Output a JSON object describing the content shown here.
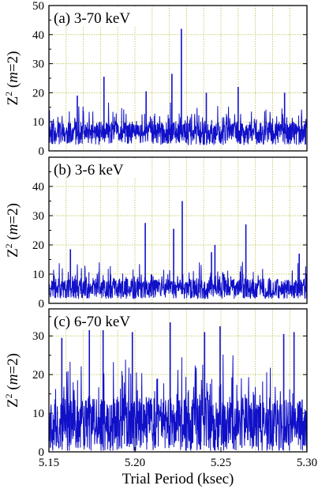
{
  "chart_data": [
    {
      "type": "line",
      "panel_label": "(a) 3-70 keV",
      "ylabel": {
        "base": "Z",
        "sup": "2",
        "paren_open": " (",
        "var": "m",
        "rest": "=2)"
      },
      "xlim": [
        5.15,
        5.3
      ],
      "ylim": [
        0,
        50
      ],
      "yticks": [
        0,
        10,
        20,
        30,
        40,
        50
      ],
      "ytick_labels": [
        "0",
        "10",
        "20",
        "30",
        "40",
        "50"
      ],
      "grid": true,
      "baseline": 6,
      "noise": 8,
      "seed": 11,
      "peaks": [
        [
          5.1665,
          19
        ],
        [
          5.182,
          25.5
        ],
        [
          5.2065,
          20.5
        ],
        [
          5.2215,
          26.5
        ],
        [
          5.227,
          42
        ],
        [
          5.2415,
          20
        ],
        [
          5.26,
          22
        ],
        [
          5.287,
          20
        ]
      ],
      "color": "#1010c8"
    },
    {
      "type": "line",
      "panel_label": "(b) 3-6 keV",
      "ylabel": {
        "base": "Z",
        "sup": "2",
        "paren_open": " (",
        "var": "m",
        "rest": "=2)"
      },
      "xlim": [
        5.15,
        5.3
      ],
      "ylim": [
        0,
        50
      ],
      "yticks": [
        0,
        10,
        20,
        30,
        40
      ],
      "ytick_labels": [
        "0",
        "10",
        "20",
        "30",
        "40"
      ],
      "grid": true,
      "baseline": 5,
      "noise": 7,
      "seed": 23,
      "peaks": [
        [
          5.1625,
          18.5
        ],
        [
          5.206,
          27.5
        ],
        [
          5.2225,
          25.5
        ],
        [
          5.2275,
          35
        ],
        [
          5.2445,
          17.5
        ],
        [
          5.2465,
          20
        ],
        [
          5.2645,
          27
        ],
        [
          5.2955,
          17
        ]
      ],
      "color": "#1010c8"
    },
    {
      "type": "line",
      "panel_label": "(c) 6-70 keV",
      "ylabel": {
        "base": "Z",
        "sup": "2",
        "paren_open": " (",
        "var": "m",
        "rest": "=2)"
      },
      "xlim": [
        5.15,
        5.3
      ],
      "ylim": [
        0,
        37
      ],
      "yticks": [
        0,
        10,
        20,
        30
      ],
      "ytick_labels": [
        "0",
        "10",
        "20",
        "30"
      ],
      "grid": true,
      "baseline": 7,
      "noise": 14,
      "seed": 37,
      "peaks": [
        [
          5.1575,
          29.5
        ],
        [
          5.1735,
          34
        ],
        [
          5.1815,
          32
        ],
        [
          5.1985,
          31
        ],
        [
          5.2205,
          33.5
        ],
        [
          5.2405,
          31
        ],
        [
          5.2495,
          32.5
        ],
        [
          5.2865,
          30.5
        ],
        [
          5.2925,
          31
        ]
      ],
      "xticks": [
        5.15,
        5.2,
        5.25,
        5.3
      ],
      "xtick_labels": [
        "5.15",
        "5.20",
        "5.25",
        "5.30"
      ],
      "xlabel": "Trial Period (ksec)",
      "color": "#1010c8"
    }
  ]
}
